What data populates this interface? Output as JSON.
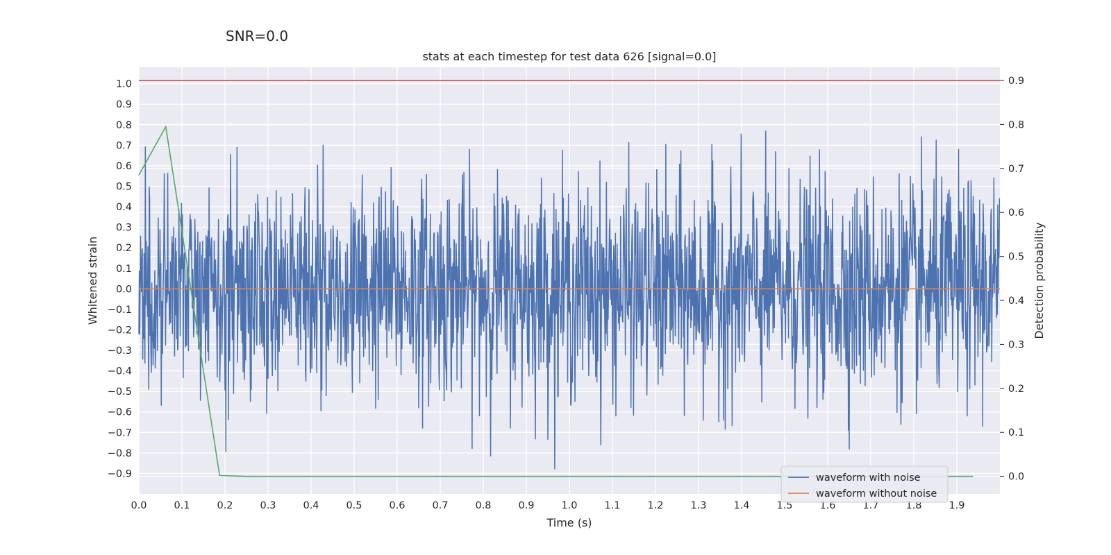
{
  "suptitle": "SNR=0.0",
  "chart_data": {
    "type": "line",
    "title": "stats at each timestep for test data 626 [signal=0.0]",
    "xlabel": "Time (s)",
    "ylabel": "Whitened strain",
    "y2label": "Detection probability",
    "xlim": [
      0.0,
      2.0
    ],
    "ylim": [
      -1.0,
      1.08
    ],
    "y2lim": [
      -0.04,
      0.93
    ],
    "xticks": [
      "0.0",
      "0.1",
      "0.2",
      "0.3",
      "0.4",
      "0.5",
      "0.6",
      "0.7",
      "0.8",
      "0.9",
      "1.0",
      "1.1",
      "1.2",
      "1.3",
      "1.4",
      "1.5",
      "1.6",
      "1.7",
      "1.8",
      "1.9"
    ],
    "yticks": [
      "1.0",
      "0.9",
      "0.8",
      "0.7",
      "0.6",
      "0.5",
      "0.4",
      "0.3",
      "0.2",
      "0.1",
      "0.0",
      "−0.1",
      "−0.2",
      "−0.3",
      "−0.4",
      "−0.5",
      "−0.6",
      "−0.7",
      "−0.8",
      "−0.9"
    ],
    "y2ticks": [
      "0.9",
      "0.8",
      "0.7",
      "0.6",
      "0.5",
      "0.4",
      "0.3",
      "0.2",
      "0.1",
      "0.0"
    ],
    "grid": true,
    "legend_position": "lower-right",
    "series": [
      {
        "name": "waveform with noise",
        "color": "#4c72b0",
        "axis": "left",
        "description": "dense noise trace, x 0 to 2 s, values roughly between -0.88 and 1.0"
      },
      {
        "name": "waveform without noise",
        "color": "#dd8452",
        "axis": "left",
        "x": [
          0.0,
          2.0
        ],
        "y": [
          0.0,
          0.0
        ]
      },
      {
        "name": "",
        "color": "#55a868",
        "axis": "right",
        "x": [
          0.0,
          0.0625,
          0.1875,
          0.25,
          0.3125,
          0.375,
          0.5,
          1.0,
          1.5,
          1.9375
        ],
        "y": [
          0.685,
          0.795,
          0.002,
          0.0,
          0.0,
          0.0,
          0.0,
          0.0,
          0.0,
          0.0
        ]
      },
      {
        "name": "",
        "color": "#c44e52",
        "axis": "right",
        "x": [
          0.0,
          2.0
        ],
        "y": [
          0.9,
          0.9
        ]
      }
    ]
  }
}
